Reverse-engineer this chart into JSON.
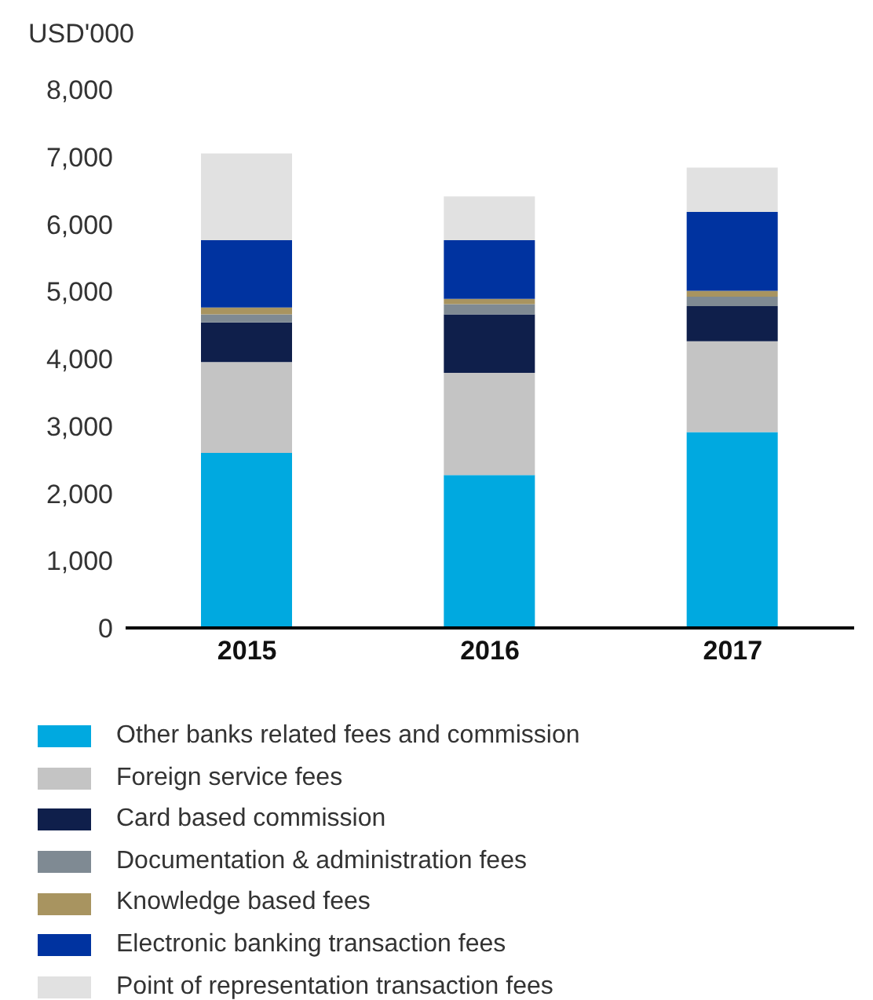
{
  "chart_data": {
    "type": "bar",
    "stacked": true,
    "ylabel": "USD'000",
    "categories": [
      "2015",
      "2016",
      "2017"
    ],
    "series": [
      {
        "name": "Other banks related fees and commission",
        "color": "#00a9e0",
        "values": [
          2600,
          2270,
          2910
        ]
      },
      {
        "name": "Foreign service fees",
        "color": "#c4c4c4",
        "values": [
          1350,
          1520,
          1350
        ]
      },
      {
        "name": "Card based commission",
        "color": "#0f1f4b",
        "values": [
          590,
          870,
          520
        ]
      },
      {
        "name": "Documentation & administration fees",
        "color": "#7f8a93",
        "values": [
          120,
          150,
          140
        ]
      },
      {
        "name": "Knowledge based fees",
        "color": "#a89460",
        "values": [
          100,
          80,
          90
        ]
      },
      {
        "name": "Electronic banking transaction fees",
        "color": "#0033a0",
        "values": [
          1000,
          870,
          1170
        ]
      },
      {
        "name": "Point of representation transaction fees",
        "color": "#e1e1e1",
        "values": [
          1290,
          650,
          660
        ]
      }
    ],
    "ylim": [
      0,
      8000
    ],
    "yticks": [
      0,
      {
        "value": 1000,
        "label": "1,000"
      },
      {
        "value": 2000,
        "label": "2,000"
      },
      {
        "value": 3000,
        "label": "3,000"
      },
      {
        "value": 4000,
        "label": "4,000"
      },
      {
        "value": 5000,
        "label": "5,000"
      },
      {
        "value": 6000,
        "label": "6,000"
      },
      {
        "value": 7000,
        "label": "7,000"
      },
      {
        "value": 8000,
        "label": "8,000"
      }
    ],
    "grid": false,
    "legend": "bottom"
  }
}
